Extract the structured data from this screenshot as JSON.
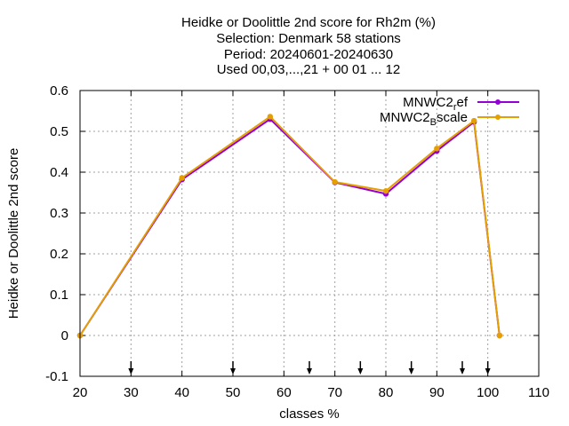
{
  "chart_data": {
    "type": "line",
    "title_lines": [
      "Heidke or Doolittle 2nd score  for Rh2m (%)",
      "Selection: Denmark     58 stations",
      "Period: 20240601-20240630",
      "Used 00,03,...,21 + 00 01 ... 12"
    ],
    "xlabel": "classes %",
    "ylabel": "Heidke or Doolittle 2nd score",
    "xlim": [
      20,
      110
    ],
    "ylim": [
      -0.1,
      0.6
    ],
    "xticks": [
      "20",
      "30",
      "40",
      "50",
      "60",
      "70",
      "80",
      "90",
      "100",
      "110"
    ],
    "yticks": [
      "-0.1",
      "0",
      "0.1",
      "0.2",
      "0.3",
      "0.4",
      "0.5",
      "0.6"
    ],
    "grid": true,
    "legend_position": "top-right",
    "arrow_markers_x": [
      30,
      50,
      65,
      75,
      85,
      95,
      100
    ],
    "series": [
      {
        "name_main": "MNWC2",
        "name_sub": "r",
        "name_tail": "ef",
        "color": "#9400d3",
        "x": [
          20,
          40,
          57.3,
          70,
          80,
          90,
          97.3,
          102.3
        ],
        "y": [
          0.0,
          0.382,
          0.53,
          0.375,
          0.347,
          0.452,
          0.523,
          0.0
        ]
      },
      {
        "name_main": "MNWC2",
        "name_sub": "B",
        "name_tail": "scale",
        "color": "#e69f00",
        "x": [
          20,
          40,
          57.3,
          70,
          80,
          90,
          97.3,
          102.3
        ],
        "y": [
          0.0,
          0.386,
          0.536,
          0.376,
          0.354,
          0.458,
          0.526,
          0.0
        ]
      }
    ]
  }
}
